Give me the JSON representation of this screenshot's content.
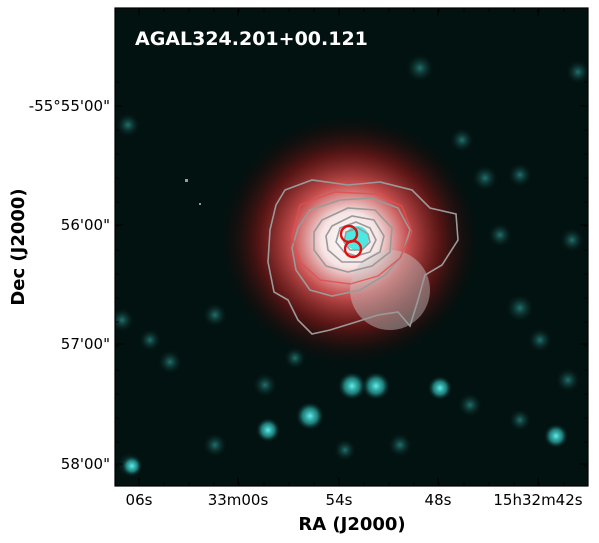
{
  "figure": {
    "field_label": "AGAL324.201+00.121",
    "x_axis": {
      "title": "RA (J2000)",
      "tick_labels": [
        "06s",
        "33m00s",
        "54s",
        "48s",
        "15h32m42s"
      ]
    },
    "y_axis": {
      "title": "Dec (J2000)",
      "tick_labels": [
        "-55°55'00\"",
        "56'00\"",
        "57'00\"",
        "58'00\""
      ]
    },
    "colors": {
      "background": "#000a08",
      "emission_red": "#d12a2a",
      "emission_core": "#ffffff",
      "stars_cyan": "#3fe0dc",
      "contour_grey": "#9a9a9a",
      "contour_red": "#e05050",
      "marker_red": "#e01010",
      "frame": "#000000"
    }
  }
}
